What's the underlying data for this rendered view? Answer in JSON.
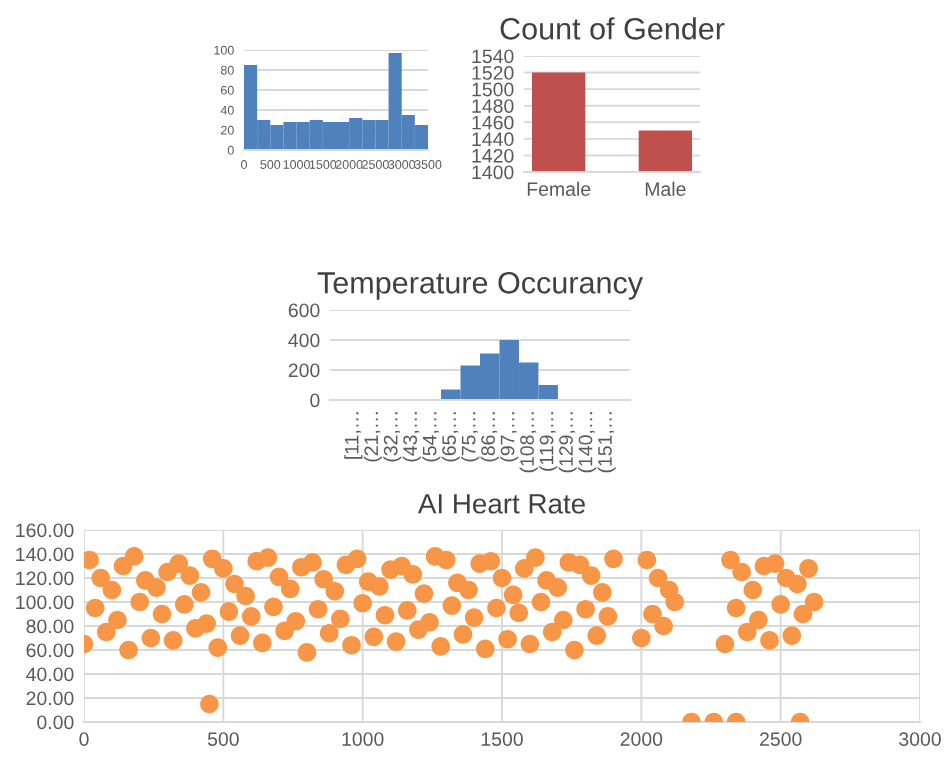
{
  "chart_data": [
    {
      "type": "histogram",
      "bins": [
        0,
        250,
        500,
        750,
        1000,
        1250,
        1500,
        1750,
        2000,
        2250,
        2500,
        2750,
        3000,
        3250,
        3500
      ],
      "values": [
        85,
        30,
        25,
        28,
        28,
        30,
        28,
        28,
        32,
        30,
        30,
        97,
        35,
        25
      ],
      "color": "#4f81bd",
      "xlim": [
        0,
        3500
      ],
      "xticks": [
        0,
        500,
        1000,
        1500,
        2000,
        2500,
        3000,
        3500
      ],
      "ylim": [
        0,
        100
      ],
      "yticks": [
        0,
        20,
        40,
        60,
        80,
        100
      ],
      "grid": "y"
    },
    {
      "type": "bar",
      "title": "Count of Gender",
      "categories": [
        "Female",
        "Male"
      ],
      "values": [
        1520,
        1450
      ],
      "color": "#c0504d",
      "ylim": [
        1400,
        1540
      ],
      "yticks": [
        1400,
        1420,
        1440,
        1460,
        1480,
        1500,
        1520,
        1540
      ],
      "grid": "y"
    },
    {
      "type": "bar",
      "title": "Temperature Occurancy",
      "categories": [
        "[11,…",
        "(21,…",
        "(32,…",
        "(43,…",
        "(54,…",
        "(65,…",
        "(75,…",
        "(86,…",
        "(97,…",
        "(108,…",
        "(119,…",
        "(129,…",
        "(140,…",
        "(151,…"
      ],
      "values": [
        0,
        0,
        0,
        0,
        0,
        70,
        230,
        310,
        400,
        250,
        100,
        0,
        0,
        0
      ],
      "color": "#4f81bd",
      "ylim": [
        0,
        600
      ],
      "yticks": [
        0,
        200,
        400,
        600
      ],
      "grid": "y"
    },
    {
      "type": "scatter",
      "title": "AI Heart Rate",
      "color": "#f79646",
      "marker": "circle",
      "grid": true,
      "x": [
        0,
        20,
        40,
        60,
        80,
        100,
        120,
        140,
        160,
        180,
        200,
        220,
        240,
        260,
        280,
        300,
        320,
        340,
        360,
        380,
        400,
        420,
        440,
        460,
        480,
        500,
        520,
        540,
        560,
        580,
        600,
        620,
        640,
        660,
        680,
        700,
        720,
        740,
        760,
        780,
        800,
        820,
        840,
        860,
        880,
        900,
        920,
        940,
        960,
        980,
        1000,
        1020,
        1040,
        1060,
        1080,
        1100,
        1120,
        1140,
        1160,
        1180,
        1200,
        1220,
        1240,
        1260,
        1280,
        1300,
        1320,
        1340,
        1360,
        1380,
        1400,
        1420,
        1440,
        1460,
        1480,
        1500,
        1520,
        1540,
        1560,
        1580,
        1600,
        1620,
        1640,
        1660,
        1680,
        1700,
        1720,
        1740,
        1760,
        1780,
        1800,
        1820,
        1840,
        1860,
        1880,
        1900,
        2000,
        2020,
        2040,
        2060,
        2080,
        2100,
        2120,
        2180,
        2260,
        2340,
        2300,
        2320,
        2340,
        2360,
        2380,
        2400,
        2420,
        2440,
        2460,
        2480,
        2500,
        2520,
        2540,
        2560,
        2580,
        2600,
        2620,
        2570,
        450
      ],
      "values": [
        65,
        135,
        95,
        120,
        75,
        110,
        85,
        130,
        60,
        138,
        100,
        118,
        70,
        112,
        90,
        125,
        68,
        132,
        98,
        122,
        78,
        108,
        82,
        136,
        62,
        128,
        92,
        115,
        72,
        105,
        88,
        134,
        66,
        137,
        96,
        121,
        76,
        111,
        84,
        129,
        58,
        133,
        94,
        119,
        74,
        109,
        86,
        131,
        64,
        136,
        99,
        117,
        71,
        113,
        89,
        127,
        67,
        130,
        93,
        123,
        77,
        107,
        83,
        138,
        63,
        135,
        97,
        116,
        73,
        110,
        87,
        132,
        61,
        134,
        95,
        120,
        69,
        106,
        91,
        128,
        65,
        137,
        100,
        118,
        75,
        112,
        85,
        133,
        60,
        131,
        94,
        122,
        72,
        108,
        88,
        136,
        70,
        135,
        90,
        120,
        80,
        110,
        100,
        0,
        0,
        0,
        65,
        135,
        95,
        125,
        75,
        110,
        85,
        130,
        68,
        132,
        98,
        120,
        72,
        115,
        90,
        128,
        100,
        0,
        15
      ],
      "xlim": [
        0,
        3000
      ],
      "xticks": [
        0,
        500,
        1000,
        1500,
        2000,
        2500,
        3000
      ],
      "ylim": [
        0,
        160
      ],
      "yticks": [
        {
          "value": 0,
          "label": "0.00"
        },
        {
          "value": 20,
          "label": "20.00"
        },
        {
          "value": 40,
          "label": "40.00"
        },
        {
          "value": 60,
          "label": "60.00"
        },
        {
          "value": 80,
          "label": "80.00"
        },
        {
          "value": 100,
          "label": "100.00"
        },
        {
          "value": 120,
          "label": "120.00"
        },
        {
          "value": 140,
          "label": "140.00"
        },
        {
          "value": 160,
          "label": "160.00"
        }
      ]
    }
  ]
}
